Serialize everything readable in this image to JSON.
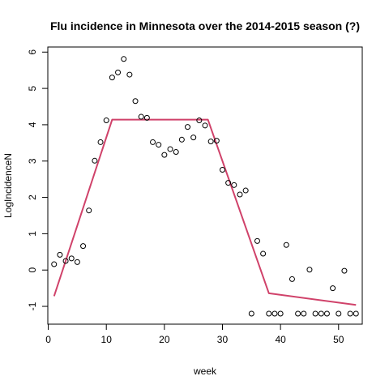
{
  "chart_data": {
    "type": "scatter",
    "title": "Flu incidence in Minnesota over the 2014-2015 season (?)",
    "xlabel": "week",
    "ylabel": "LogIncidenceN",
    "xlim": [
      -0.08,
      54.08
    ],
    "ylim": [
      -1.49,
      6.14
    ],
    "xticks": [
      0,
      10,
      20,
      30,
      40,
      50
    ],
    "yticks": [
      -1,
      0,
      1,
      2,
      3,
      4,
      5,
      6
    ],
    "grid": false,
    "legend": "none",
    "point_color": "#000000",
    "line_color": "#d0426a",
    "points": [
      {
        "x": 1,
        "y": 0.16
      },
      {
        "x": 2,
        "y": 0.42
      },
      {
        "x": 3,
        "y": 0.25
      },
      {
        "x": 4,
        "y": 0.32
      },
      {
        "x": 5,
        "y": 0.22
      },
      {
        "x": 6,
        "y": 0.66
      },
      {
        "x": 7,
        "y": 1.64
      },
      {
        "x": 8,
        "y": 3.01
      },
      {
        "x": 9,
        "y": 3.52
      },
      {
        "x": 10,
        "y": 4.12
      },
      {
        "x": 11,
        "y": 5.3
      },
      {
        "x": 12,
        "y": 5.44
      },
      {
        "x": 13,
        "y": 5.81
      },
      {
        "x": 14,
        "y": 5.38
      },
      {
        "x": 15,
        "y": 4.65
      },
      {
        "x": 16,
        "y": 4.22
      },
      {
        "x": 17,
        "y": 4.19
      },
      {
        "x": 18,
        "y": 3.52
      },
      {
        "x": 19,
        "y": 3.45
      },
      {
        "x": 20,
        "y": 3.17
      },
      {
        "x": 21,
        "y": 3.33
      },
      {
        "x": 22,
        "y": 3.25
      },
      {
        "x": 23,
        "y": 3.59
      },
      {
        "x": 24,
        "y": 3.94
      },
      {
        "x": 25,
        "y": 3.65
      },
      {
        "x": 26,
        "y": 4.12
      },
      {
        "x": 27,
        "y": 3.98
      },
      {
        "x": 28,
        "y": 3.54
      },
      {
        "x": 29,
        "y": 3.56
      },
      {
        "x": 30,
        "y": 2.76
      },
      {
        "x": 31,
        "y": 2.4
      },
      {
        "x": 32,
        "y": 2.34
      },
      {
        "x": 33,
        "y": 2.08
      },
      {
        "x": 34,
        "y": 2.19
      },
      {
        "x": 35,
        "y": -1.2
      },
      {
        "x": 36,
        "y": 0.8
      },
      {
        "x": 37,
        "y": 0.45
      },
      {
        "x": 38,
        "y": -1.2
      },
      {
        "x": 39,
        "y": -1.2
      },
      {
        "x": 40,
        "y": -1.2
      },
      {
        "x": 41,
        "y": 0.69
      },
      {
        "x": 42,
        "y": -0.25
      },
      {
        "x": 43,
        "y": -1.2
      },
      {
        "x": 44,
        "y": -1.2
      },
      {
        "x": 45,
        "y": 0.01
      },
      {
        "x": 46,
        "y": -1.2
      },
      {
        "x": 47,
        "y": -1.2
      },
      {
        "x": 48,
        "y": -1.2
      },
      {
        "x": 49,
        "y": -0.5
      },
      {
        "x": 50,
        "y": -1.2
      },
      {
        "x": 51,
        "y": -0.02
      },
      {
        "x": 52,
        "y": -1.2
      },
      {
        "x": 53,
        "y": -1.2
      }
    ],
    "fit_line": [
      {
        "x": 1,
        "y": -0.72
      },
      {
        "x": 11,
        "y": 4.14
      },
      {
        "x": 27.5,
        "y": 4.14
      },
      {
        "x": 38,
        "y": -0.64
      },
      {
        "x": 53,
        "y": -0.96
      }
    ]
  }
}
